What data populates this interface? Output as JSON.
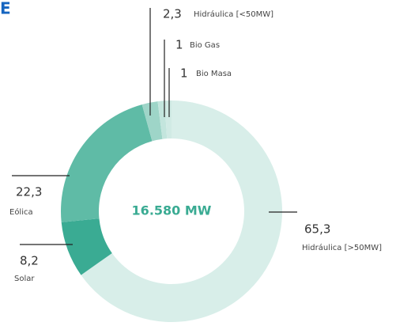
{
  "page_mark": "E",
  "chart_data": {
    "type": "donut",
    "center_label": "16.580 MW",
    "categories": [
      "Hidráulica [>50MW]",
      "Solar",
      "Eólica",
      "Hidráulica [<50MW]",
      "Bio Gas",
      "Bio Masa"
    ],
    "values": [
      65.3,
      8.2,
      22.3,
      2.3,
      1,
      1
    ],
    "value_labels": [
      "65,3",
      "8,2",
      "22,3",
      "2,3",
      "1",
      "1"
    ],
    "colors": [
      "#d8eee9",
      "#3aab93",
      "#5fbba6",
      "#9ed5c8",
      "#c3e5dd",
      "#d0eae4"
    ]
  }
}
